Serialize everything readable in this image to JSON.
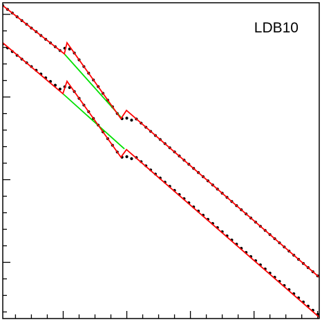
{
  "chart_data": {
    "type": "line",
    "annotation": "LDB10",
    "xlim": [
      0.2,
      20.1
    ],
    "ylim": [
      -3.4,
      15.7
    ],
    "xticks": [
      1,
      2,
      3,
      4,
      5,
      6,
      7,
      8,
      9,
      10,
      11,
      12,
      13,
      14,
      15,
      16,
      17,
      18,
      19,
      20
    ],
    "yticks": [
      -3,
      -2,
      -1,
      0,
      1,
      2,
      3,
      4,
      5,
      6,
      7,
      8,
      9,
      10,
      11,
      12,
      13,
      14,
      15
    ],
    "series": [
      {
        "color": "#000000",
        "marker": "dot",
        "x": [
          0.2,
          0.5,
          0.8,
          1.1,
          1.4,
          1.7,
          2.0,
          2.3,
          2.6,
          2.9,
          3.2,
          3.5,
          3.8,
          4.1,
          4.4,
          4.7,
          5.0,
          5.3,
          5.6,
          5.9,
          6.2,
          6.5,
          6.8,
          7.1,
          7.4,
          7.7,
          8.0,
          8.3,
          8.6,
          8.9,
          9.2,
          9.5,
          9.8,
          10.1,
          10.4,
          10.7,
          11.0,
          11.3,
          11.6,
          11.9,
          12.2,
          12.5,
          12.8,
          13.1,
          13.4,
          13.7,
          14.0,
          14.3,
          14.6,
          14.9,
          15.2,
          15.5,
          15.8,
          16.1,
          16.4,
          16.7,
          17.0,
          17.3,
          17.6,
          17.9,
          18.2,
          18.5,
          18.8,
          19.1,
          19.4,
          19.7,
          20.0
        ],
        "values": [
          15.53,
          15.3,
          15.08,
          14.85,
          14.62,
          14.4,
          14.17,
          13.95,
          13.72,
          13.49,
          13.27,
          13.04,
          12.81,
          12.95,
          12.9,
          12.66,
          12.25,
          11.84,
          11.44,
          11.03,
          10.63,
          10.22,
          9.81,
          9.41,
          9.0,
          8.69,
          8.72,
          8.6,
          8.67,
          8.42,
          8.17,
          7.92,
          7.67,
          7.43,
          7.18,
          6.93,
          6.68,
          6.43,
          6.18,
          5.93,
          5.68,
          5.43,
          5.18,
          4.93,
          4.68,
          4.43,
          4.18,
          3.93,
          3.68,
          3.43,
          3.18,
          2.93,
          2.68,
          2.43,
          2.18,
          1.93,
          1.68,
          1.43,
          1.18,
          0.93,
          0.68,
          0.43,
          0.18,
          -0.07,
          -0.32,
          -0.57,
          -0.82
        ]
      },
      {
        "color": "#000000",
        "marker": "dot",
        "x": [
          0.2,
          0.5,
          0.8,
          1.1,
          1.4,
          1.7,
          2.0,
          2.3,
          2.6,
          2.9,
          3.2,
          3.5,
          3.8,
          4.1,
          4.4,
          4.7,
          5.0,
          5.3,
          5.6,
          5.9,
          6.2,
          6.5,
          6.8,
          7.1,
          7.4,
          7.7,
          8.0,
          8.3,
          8.6,
          8.9,
          9.2,
          9.5,
          9.8,
          10.1,
          10.4,
          10.7,
          11.0,
          11.3,
          11.6,
          11.9,
          12.2,
          12.5,
          12.8,
          13.1,
          13.4,
          13.7,
          14.0,
          14.3,
          14.6,
          14.9,
          15.2,
          15.5,
          15.8,
          16.1,
          16.4,
          16.7,
          17.0,
          17.3,
          17.6,
          17.9,
          18.2,
          18.5,
          18.8,
          19.1,
          19.4,
          19.7,
          20.0
        ],
        "values": [
          13.2,
          12.97,
          12.75,
          12.52,
          12.29,
          12.07,
          11.84,
          11.62,
          11.39,
          11.16,
          10.94,
          10.71,
          10.48,
          10.62,
          10.57,
          10.33,
          9.92,
          9.51,
          9.11,
          8.7,
          8.3,
          7.89,
          7.48,
          7.08,
          6.67,
          6.36,
          6.39,
          6.27,
          6.34,
          6.09,
          5.84,
          5.59,
          5.34,
          5.1,
          4.85,
          4.6,
          4.35,
          4.1,
          3.85,
          3.6,
          3.35,
          3.1,
          2.85,
          2.6,
          2.35,
          2.1,
          1.85,
          1.6,
          1.35,
          1.1,
          0.85,
          0.6,
          0.35,
          0.1,
          -0.15,
          -0.4,
          -0.65,
          -0.9,
          -1.15,
          -1.4,
          -1.65,
          -1.9,
          -2.15,
          -2.4,
          -2.65,
          -2.9,
          -3.15
        ]
      },
      {
        "color": "#00e000",
        "marker": "line",
        "x": [
          4.07,
          7.63
        ],
        "values": [
          12.61,
          8.78
        ]
      },
      {
        "color": "#00e000",
        "marker": "line",
        "x": [
          3.98,
          7.85
        ],
        "values": [
          10.2,
          6.86
        ]
      },
      {
        "color": "#ff0000",
        "marker": "line",
        "x": [
          0.2,
          4.07,
          4.24,
          7.63,
          7.98,
          20.1
        ],
        "values": [
          15.53,
          12.61,
          13.28,
          8.69,
          9.19,
          -0.9
        ]
      },
      {
        "color": "#ff0000",
        "marker": "line",
        "x": [
          0.2,
          3.98,
          4.24,
          7.63,
          7.98,
          20.1
        ],
        "values": [
          13.28,
          10.2,
          10.95,
          6.36,
          6.82,
          -3.32
        ]
      }
    ]
  }
}
